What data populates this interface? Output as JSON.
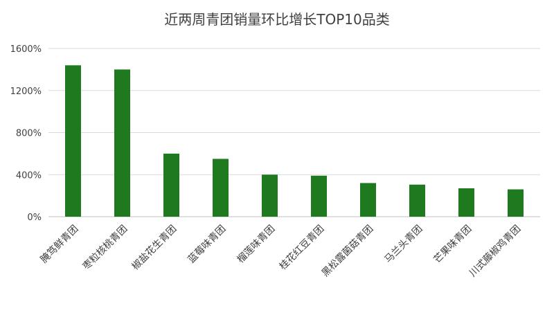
{
  "chart_data": {
    "type": "bar",
    "title": "近两周青团销量环比增长TOP10品类",
    "categories": [
      "腌笃鲜青团",
      "枣粒核桃青团",
      "椒盐花生青团",
      "蓝莓味青团",
      "榴莲味青团",
      "桂花红豆青团",
      "黑松露菌菇青团",
      "马兰头青团",
      "芒果味青团",
      "川式藤椒鸡青团"
    ],
    "values": [
      1440,
      1400,
      600,
      550,
      400,
      390,
      320,
      305,
      270,
      260
    ],
    "unit": "%",
    "ylim": [
      0,
      1600
    ],
    "yticks": [
      0,
      400,
      800,
      1200,
      1600
    ],
    "ytick_labels": [
      "0%",
      "400%",
      "800%",
      "1200%",
      "1600%"
    ],
    "xlabel": "",
    "ylabel": "",
    "grid": true,
    "bar_color": "#1f7a1f"
  }
}
